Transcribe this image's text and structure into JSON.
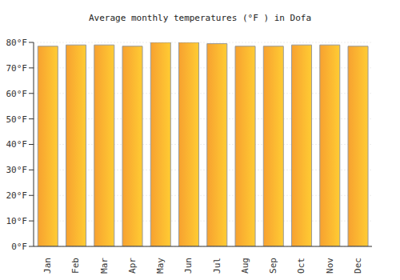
{
  "chart_data": {
    "type": "bar",
    "title": "Average monthly temperatures (°F ) in Dofa",
    "categories": [
      "Jan",
      "Feb",
      "Mar",
      "Apr",
      "May",
      "Jun",
      "Jul",
      "Aug",
      "Sep",
      "Oct",
      "Nov",
      "Dec"
    ],
    "values": [
      78.5,
      79,
      79,
      78.5,
      80,
      80,
      79.5,
      78.5,
      78.5,
      79,
      79,
      78.5
    ],
    "color": "#f7a130",
    "ylim": [
      0,
      80
    ],
    "yticks": [
      {
        "value": 0,
        "label": "0°F"
      },
      {
        "value": 10,
        "label": "10°F"
      },
      {
        "value": 20,
        "label": "20°F"
      },
      {
        "value": 30,
        "label": "30°F"
      },
      {
        "value": 40,
        "label": "40°F"
      },
      {
        "value": 50,
        "label": "50°F"
      },
      {
        "value": 60,
        "label": "60°F"
      },
      {
        "value": 70,
        "label": "70°F"
      },
      {
        "value": 80,
        "label": "80°F"
      }
    ],
    "grid": true
  }
}
